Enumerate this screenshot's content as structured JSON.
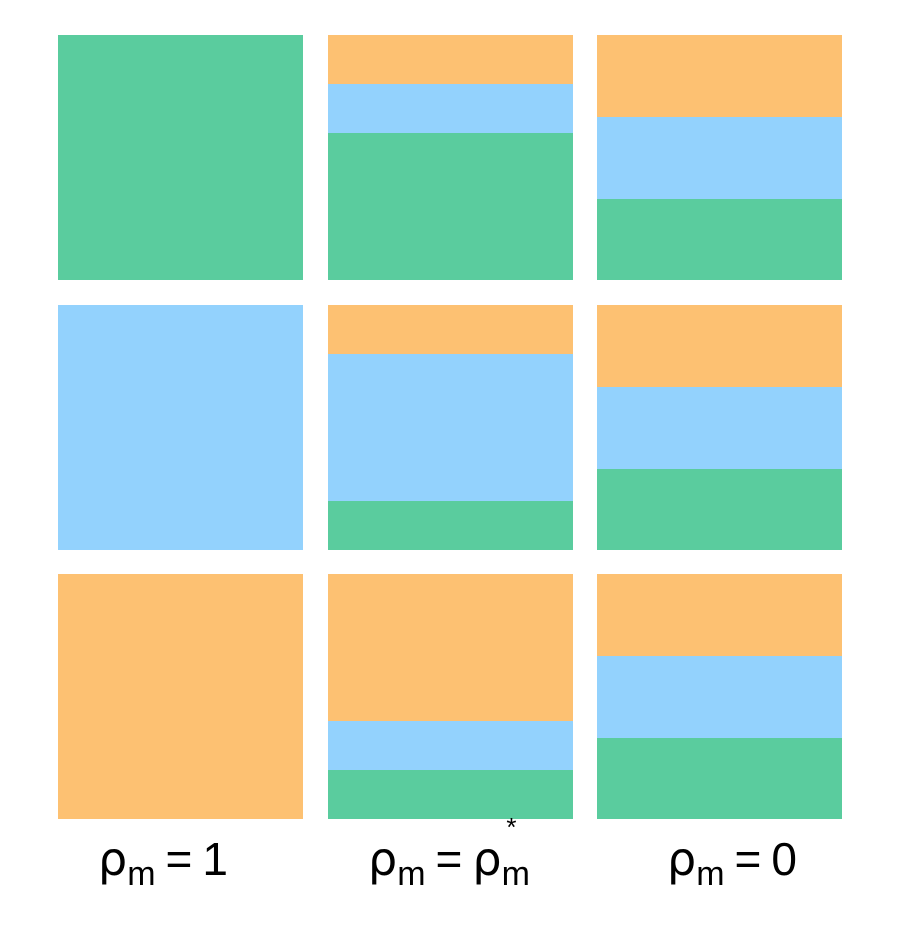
{
  "colors": {
    "green": "#5acc9e",
    "blue": "#93d2fd",
    "orange": "#fdc172"
  },
  "grid": [
    [
      {
        "bands": [
          {
            "color": "green",
            "fraction": 1.0
          }
        ]
      },
      {
        "bands": [
          {
            "color": "orange",
            "fraction": 0.2
          },
          {
            "color": "blue",
            "fraction": 0.2
          },
          {
            "color": "green",
            "fraction": 0.6
          }
        ]
      },
      {
        "bands": [
          {
            "color": "orange",
            "fraction": 0.333
          },
          {
            "color": "blue",
            "fraction": 0.333
          },
          {
            "color": "green",
            "fraction": 0.334
          }
        ]
      }
    ],
    [
      {
        "bands": [
          {
            "color": "blue",
            "fraction": 1.0
          }
        ]
      },
      {
        "bands": [
          {
            "color": "orange",
            "fraction": 0.2
          },
          {
            "color": "blue",
            "fraction": 0.6
          },
          {
            "color": "green",
            "fraction": 0.2
          }
        ]
      },
      {
        "bands": [
          {
            "color": "orange",
            "fraction": 0.333
          },
          {
            "color": "blue",
            "fraction": 0.333
          },
          {
            "color": "green",
            "fraction": 0.334
          }
        ]
      }
    ],
    [
      {
        "bands": [
          {
            "color": "orange",
            "fraction": 1.0
          }
        ]
      },
      {
        "bands": [
          {
            "color": "orange",
            "fraction": 0.6
          },
          {
            "color": "blue",
            "fraction": 0.2
          },
          {
            "color": "green",
            "fraction": 0.2
          }
        ]
      },
      {
        "bands": [
          {
            "color": "orange",
            "fraction": 0.333
          },
          {
            "color": "blue",
            "fraction": 0.333
          },
          {
            "color": "green",
            "fraction": 0.334
          }
        ]
      }
    ]
  ],
  "labels": [
    {
      "symbol": "ρ",
      "subscript": "m",
      "equals": "=",
      "value": "1"
    },
    {
      "symbol": "ρ",
      "subscript": "m",
      "equals": "=",
      "value_symbol": "ρ",
      "value_subscript": "m",
      "value_superscript": "*"
    },
    {
      "symbol": "ρ",
      "subscript": "m",
      "equals": "=",
      "value": "0"
    }
  ]
}
